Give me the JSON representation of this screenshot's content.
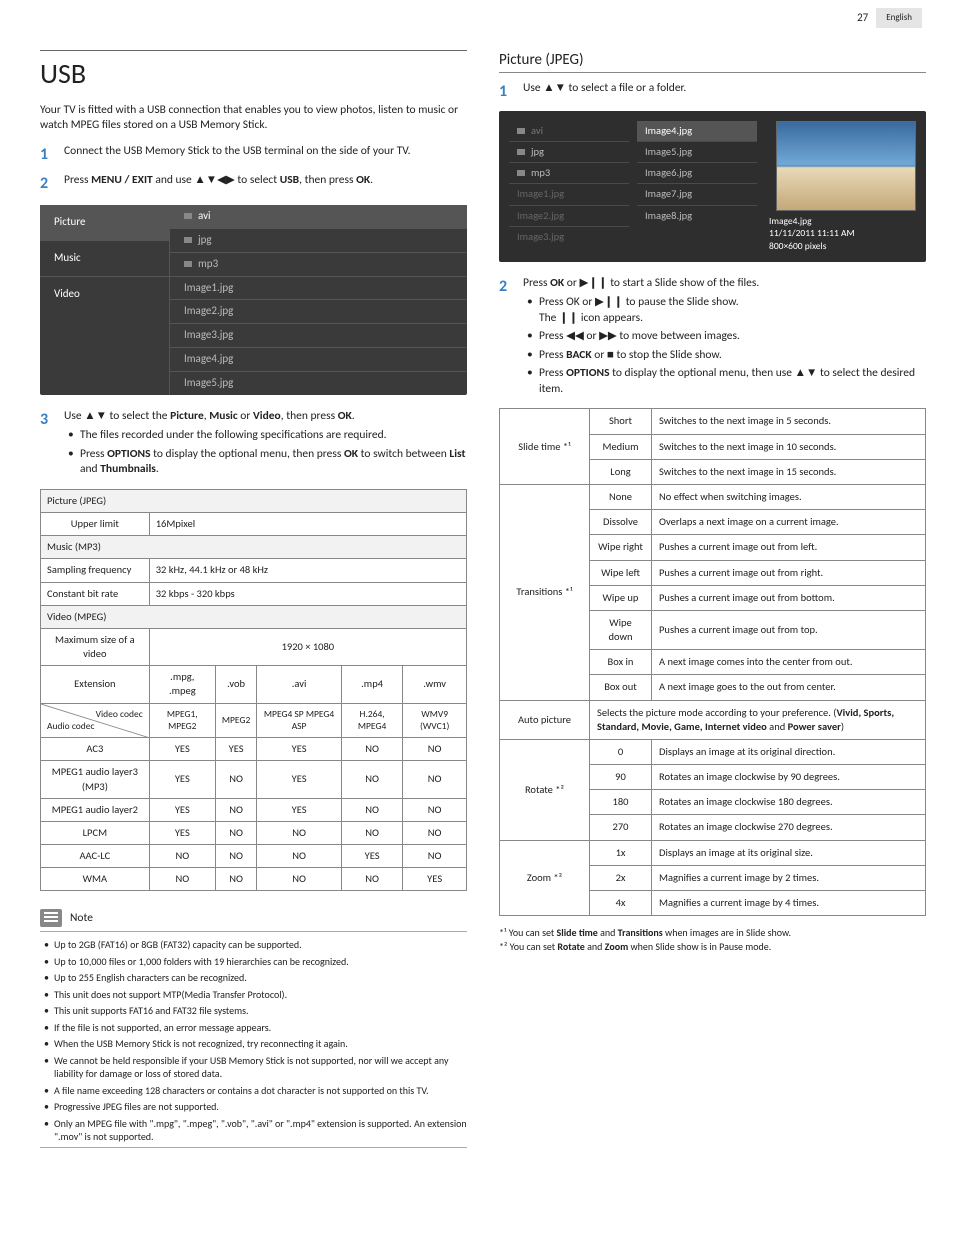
{
  "page_number": "27",
  "language": "English",
  "left": {
    "heading": "USB",
    "intro": "Your TV is fitted with a USB connection that enables you to view photos, listen to music or watch MPEG files stored on a USB Memory Stick.",
    "step1": "Connect the USB Memory Stick to the USB terminal on the side of your TV.",
    "step2_pre": "Press ",
    "step2_menu": "MENU / EXIT",
    "step2_mid": " and use ▲▼◀▶ to select ",
    "step2_usb": "USB",
    "step2_post": ", then press ",
    "step2_ok": "OK",
    "step2_end": ".",
    "browser": {
      "categories": [
        "Picture",
        "Music",
        "Video"
      ],
      "folders": [
        "avi",
        "jpg",
        "mp3"
      ],
      "files": [
        "Image1.jpg",
        "Image2.jpg",
        "Image3.jpg",
        "Image4.jpg",
        "Image5.jpg"
      ]
    },
    "step3_text": "Use ▲▼ to select the ",
    "step3_b1": "Picture",
    "step3_b2": "Music",
    "step3_b3": "Video",
    "step3_post": ", then press ",
    "step3_ok": "OK",
    "step3_end": ".",
    "step3_bullet1": "The files recorded under the following specifications are required.",
    "step3_bullet2_pre": "Press ",
    "step3_bullet2_opt": "OPTIONS",
    "step3_bullet2_mid": " to display the optional menu, then press ",
    "step3_bullet2_ok": "OK",
    "step3_bullet2_post": " to switch between ",
    "step3_bullet2_list": "List",
    "step3_bullet2_and": " and ",
    "step3_bullet2_thumb": "Thumbnails",
    "step3_bullet2_end": ".",
    "spec": {
      "pic_hdr": "Picture (JPEG)",
      "pic_row_label": "Upper limit",
      "pic_row_val": "16Mpixel",
      "mus_hdr": "Music (MP3)",
      "mus_r1_l": "Sampling frequency",
      "mus_r1_v": "32 kHz, 44.1 kHz or 48 kHz",
      "mus_r2_l": "Constant bit rate",
      "mus_r2_v": "32 kbps - 320 kbps",
      "vid_hdr": "Video (MPEG)",
      "vid_r1_l": "Maximum size of a video",
      "vid_r1_v": "1920 × 1080",
      "ext_label": "Extension",
      "ext_cols": [
        ".mpg, .mpeg",
        ".vob",
        ".avi",
        ".mp4",
        ".wmv"
      ],
      "codec_top": "Video codec",
      "codec_bot": "Audio codec",
      "codec_cols": [
        "MPEG1, MPEG2",
        "MPEG2",
        "MPEG4 SP MPEG4 ASP",
        "H.264, MPEG4",
        "WMV9 (WVC1)"
      ],
      "rows": [
        {
          "l": "AC3",
          "v": [
            "YES",
            "YES",
            "YES",
            "NO",
            "NO"
          ]
        },
        {
          "l": "MPEG1 audio layer3 (MP3)",
          "v": [
            "YES",
            "NO",
            "YES",
            "NO",
            "NO"
          ]
        },
        {
          "l": "MPEG1 audio layer2",
          "v": [
            "YES",
            "NO",
            "YES",
            "NO",
            "NO"
          ]
        },
        {
          "l": "LPCM",
          "v": [
            "YES",
            "NO",
            "NO",
            "NO",
            "NO"
          ]
        },
        {
          "l": "AAC-LC",
          "v": [
            "NO",
            "NO",
            "NO",
            "YES",
            "NO"
          ]
        },
        {
          "l": "WMA",
          "v": [
            "NO",
            "NO",
            "NO",
            "NO",
            "YES"
          ]
        }
      ]
    },
    "note_title": "Note",
    "notes": [
      "Up to 2GB (FAT16) or 8GB (FAT32) capacity can be supported.",
      "Up to 10,000 files or 1,000 folders with 19 hierarchies can be recognized.",
      "Up to 255 English characters can be recognized.",
      "This unit does not support MTP(Media Transfer Protocol).",
      "This unit supports FAT16 and FAT32 file systems.",
      "If the file is not supported, an error message appears.",
      "When the USB Memory Stick is not recognized, try reconnecting it again.",
      "We cannot be held responsible if your USB Memory Stick is not supported, nor will we accept any liability for damage or loss of stored data.",
      "A file name exceeding 128 characters or contains a dot character is not supported on this TV.",
      "Progressive JPEG files are not supported.",
      "Only an MPEG file with \".mpg\", \".mpeg\", \".vob\", \".avi\" or \".mp4\" extension is supported. An extension \".mov\" is not supported."
    ]
  },
  "right": {
    "heading": "Picture (JPEG)",
    "step1": "Use ▲▼ to select a file or a folder.",
    "browser": {
      "folders": [
        "avi",
        "jpg",
        "mp3"
      ],
      "dimmed": [
        "Image1.jpg",
        "Image2.jpg",
        "Image3.jpg"
      ],
      "mid": [
        "Image4.jpg",
        "Image5.jpg",
        "Image6.jpg",
        "Image7.jpg",
        "Image8.jpg"
      ],
      "preview_name": "Image4.jpg",
      "preview_date": "11/11/2011 11:11 AM",
      "preview_size": "800×600 pixels"
    },
    "step2_pre": "Press ",
    "step2_ok": "OK",
    "step2_or": " or ▶❙❙ to start a Slide show of the files.",
    "step2_b1": "Press OK or ▶❙❙ to pause the Slide show.",
    "step2_b1b": "The ❙❙ icon appears.",
    "step2_b2": "Press ◀◀ or ▶▶ to move between images.",
    "step2_b3_pre": "Press ",
    "step2_b3_back": "BACK",
    "step2_b3_post": " or ■ to stop the Slide show.",
    "step2_b4_pre": "Press ",
    "step2_b4_opt": "OPTIONS",
    "step2_b4_post": " to display the optional menu, then use ▲▼ to select the desired item.",
    "options": {
      "slide_label": "Slide time *¹",
      "slide": [
        {
          "k": "Short",
          "d": "Switches to the next image in 5 seconds."
        },
        {
          "k": "Medium",
          "d": "Switches to the next image in 10 seconds."
        },
        {
          "k": "Long",
          "d": "Switches to the next image in 15 seconds."
        }
      ],
      "trans_label": "Transitions *¹",
      "trans": [
        {
          "k": "None",
          "d": "No effect when switching images."
        },
        {
          "k": "Dissolve",
          "d": "Overlaps a next image on a current image."
        },
        {
          "k": "Wipe right",
          "d": "Pushes a current image out from left."
        },
        {
          "k": "Wipe left",
          "d": "Pushes a current image out from right."
        },
        {
          "k": "Wipe up",
          "d": "Pushes a current image out from bottom."
        },
        {
          "k": "Wipe down",
          "d": "Pushes a current image out from top."
        },
        {
          "k": "Box in",
          "d": "A next image comes into the center from out."
        },
        {
          "k": "Box out",
          "d": "A next image goes to the out from center."
        }
      ],
      "auto_label": "Auto picture",
      "auto_desc_pre": "Selects the picture mode according to your preference. (",
      "auto_desc_b": "Vivid, Sports, Standard, Movie, Game, Internet video",
      "auto_desc_and": " and ",
      "auto_desc_b2": "Power saver",
      "auto_desc_post": ")",
      "rotate_label": "Rotate *²",
      "rotate": [
        {
          "k": "0",
          "d": "Displays an image at its original direction."
        },
        {
          "k": "90",
          "d": "Rotates an image clockwise by 90 degrees."
        },
        {
          "k": "180",
          "d": "Rotates an image clockwise 180 degrees."
        },
        {
          "k": "270",
          "d": "Rotates an image clockwise 270 degrees."
        }
      ],
      "zoom_label": "Zoom *²",
      "zoom": [
        {
          "k": "1x",
          "d": "Displays an image at its original size."
        },
        {
          "k": "2x",
          "d": "Magnifies a current image by 2 times."
        },
        {
          "k": "4x",
          "d": "Magnifies a current image by 4 times."
        }
      ]
    },
    "fn1_pre": "*¹ You can set ",
    "fn1_b1": "Slide time",
    "fn1_and": " and ",
    "fn1_b2": "Transitions",
    "fn1_post": " when images are in Slide show.",
    "fn2_pre": "*² You can set ",
    "fn2_b1": "Rotate",
    "fn2_and": " and ",
    "fn2_b2": "Zoom",
    "fn2_post": " when Slide show is in Pause mode."
  }
}
